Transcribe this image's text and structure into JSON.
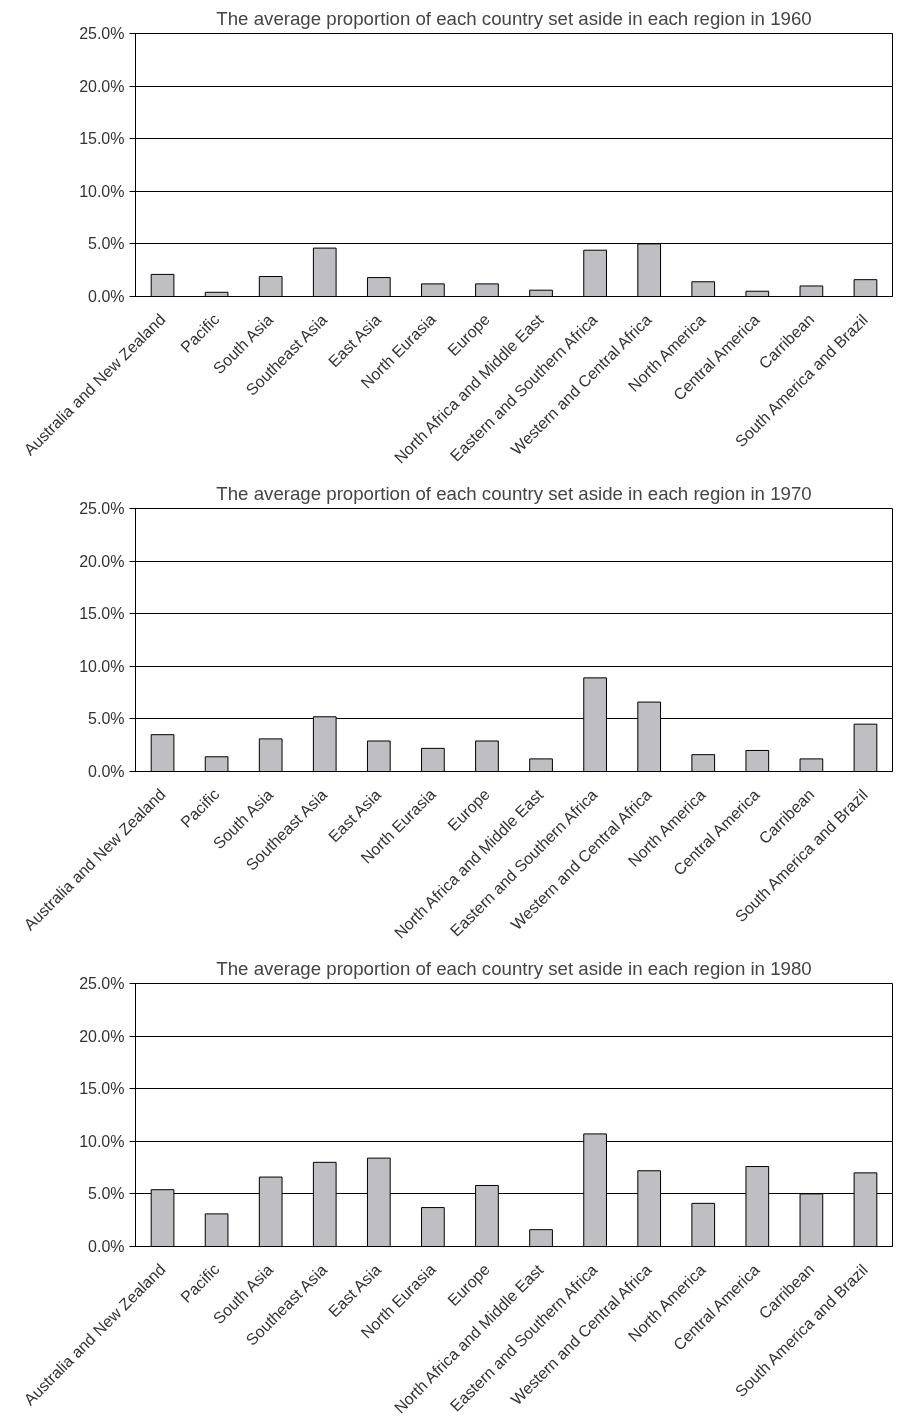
{
  "chart_data": [
    {
      "type": "bar",
      "title": "The average proportion of each country set aside in each region in 1960",
      "categories": [
        "Australia and New Zealand",
        "Pacific",
        "South Asia",
        "Southeast Asia",
        "East Asia",
        "North Eurasia",
        "Europe",
        "North Africa and Middle East",
        "Eastern and Southern Africa",
        "Western and Central Africa",
        "North America",
        "Central America",
        "Carribean",
        "South America and Brazil"
      ],
      "values": [
        2.1,
        0.4,
        1.9,
        4.6,
        1.8,
        1.2,
        1.2,
        0.6,
        4.4,
        5.0,
        1.4,
        0.5,
        1.0,
        1.6
      ],
      "color": "#bfbfc3",
      "ylim": [
        0,
        25
      ],
      "yticks": [
        {
          "value": 0,
          "label": "0.0%"
        },
        {
          "value": 5,
          "label": "5.0%"
        },
        {
          "value": 10,
          "label": "10.0%"
        },
        {
          "value": 15,
          "label": "15.0%"
        },
        {
          "value": 20,
          "label": "20.0%"
        },
        {
          "value": 25,
          "label": "25.0%"
        }
      ],
      "grid": "y"
    },
    {
      "type": "bar",
      "title": "The average proportion of each country set aside in each region in 1970",
      "categories": [
        "Australia and New Zealand",
        "Pacific",
        "South Asia",
        "Southeast Asia",
        "East Asia",
        "North Eurasia",
        "Europe",
        "North Africa and Middle East",
        "Eastern and Southern Africa",
        "Western and Central Africa",
        "North America",
        "Central America",
        "Carribean",
        "South America and Brazil"
      ],
      "values": [
        3.5,
        1.4,
        3.1,
        5.2,
        2.9,
        2.2,
        2.9,
        1.2,
        8.9,
        6.6,
        1.6,
        2.0,
        1.2,
        4.5
      ],
      "color": "#bfbfc3",
      "ylim": [
        0,
        25
      ],
      "yticks": [
        {
          "value": 0,
          "label": "0.0%"
        },
        {
          "value": 5,
          "label": "5.0%"
        },
        {
          "value": 10,
          "label": "10.0%"
        },
        {
          "value": 15,
          "label": "15.0%"
        },
        {
          "value": 20,
          "label": "20.0%"
        },
        {
          "value": 25,
          "label": "25.0%"
        }
      ],
      "grid": "y"
    },
    {
      "type": "bar",
      "title": "The average proportion of each country set aside in each region in 1980",
      "categories": [
        "Australia and New Zealand",
        "Pacific",
        "South Asia",
        "Southeast Asia",
        "East Asia",
        "North Eurasia",
        "Europe",
        "North Africa and Middle East",
        "Eastern and Southern Africa",
        "Western and Central Africa",
        "North America",
        "Central America",
        "Carribean",
        "South America and Brazil"
      ],
      "values": [
        5.4,
        3.1,
        6.6,
        8.0,
        8.4,
        3.7,
        5.8,
        1.6,
        10.7,
        7.2,
        4.1,
        7.6,
        5.0,
        7.0
      ],
      "color": "#bfbfc3",
      "ylim": [
        0,
        25
      ],
      "yticks": [
        {
          "value": 0,
          "label": "0.0%"
        },
        {
          "value": 5,
          "label": "5.0%"
        },
        {
          "value": 10,
          "label": "10.0%"
        },
        {
          "value": 15,
          "label": "15.0%"
        },
        {
          "value": 20,
          "label": "20.0%"
        },
        {
          "value": 25,
          "label": "25.0%"
        }
      ],
      "grid": "y"
    }
  ]
}
